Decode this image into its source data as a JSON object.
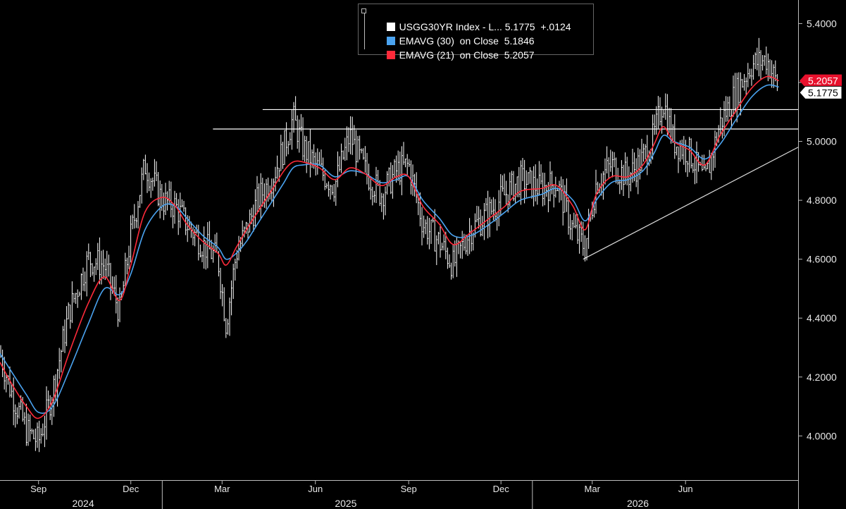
{
  "chart_data": {
    "type": "line",
    "title": "",
    "ylim": [
      3.85,
      5.48
    ],
    "y_ticks": [
      "4.0000",
      "4.2000",
      "4.4000",
      "4.6000",
      "4.8000",
      "5.0000",
      "5.2000",
      "5.4000"
    ],
    "y_tick_values": [
      4.0,
      4.2,
      4.4,
      4.6,
      4.8,
      5.0,
      5.2,
      5.4
    ],
    "x_month_ticks": [
      {
        "label": "Sep",
        "date": "2024-09-01"
      },
      {
        "label": "Dec",
        "date": "2024-12-01"
      },
      {
        "label": "Mar",
        "date": "2025-03-01"
      },
      {
        "label": "Jun",
        "date": "2025-06-01"
      },
      {
        "label": "Sep",
        "date": "2025-09-01"
      },
      {
        "label": "Dec",
        "date": "2025-12-01"
      },
      {
        "label": "Mar",
        "date": "2026-03-01"
      },
      {
        "label": "Jun",
        "date": "2026-06-01"
      }
    ],
    "x_years": [
      {
        "label": "2024",
        "date": "2024-10-15"
      },
      {
        "label": "2025",
        "date": "2025-07-01"
      },
      {
        "label": "2026",
        "date": "2026-04-15"
      }
    ],
    "x_range": [
      "2024-07-25",
      "2026-09-20"
    ],
    "legend": [
      {
        "label": "USGG30YR Index - L...",
        "value": "5.1775",
        "change": "+.0124",
        "color": "#ffffff"
      },
      {
        "label": "EMAVG (30)  on Close",
        "value": "5.1846",
        "change": "",
        "color": "#4aa3f0"
      },
      {
        "label": "EMAVG (21)  on Close",
        "value": "5.2057",
        "change": "",
        "color": "#ff2a3a"
      }
    ],
    "last_price_label": "5.1775",
    "ema21_flag_label": "5.2057",
    "series": [
      {
        "name": "USGG30YR Index - L...",
        "style": "ohlc",
        "color": "#ffffff",
        "x": [
          "2024-07-25",
          "2024-08-05",
          "2024-08-20",
          "2024-09-01",
          "2024-09-15",
          "2024-10-01",
          "2024-10-20",
          "2024-11-05",
          "2024-11-20",
          "2024-12-01",
          "2024-12-15",
          "2025-01-01",
          "2025-01-14",
          "2025-01-25",
          "2025-02-10",
          "2025-02-25",
          "2025-03-05",
          "2025-03-15",
          "2025-03-25",
          "2025-04-05",
          "2025-04-20",
          "2025-05-01",
          "2025-05-10",
          "2025-05-20",
          "2025-06-05",
          "2025-06-20",
          "2025-07-05",
          "2025-07-20",
          "2025-08-05",
          "2025-08-20",
          "2025-09-01",
          "2025-09-15",
          "2025-10-01",
          "2025-10-15",
          "2025-11-01",
          "2025-11-20",
          "2025-12-05",
          "2025-12-20",
          "2026-01-10",
          "2026-01-25",
          "2026-02-10",
          "2026-02-22",
          "2026-03-05",
          "2026-03-20",
          "2026-04-05",
          "2026-04-20",
          "2026-05-01",
          "2026-05-10",
          "2026-05-20",
          "2026-06-05",
          "2026-06-20",
          "2026-07-05",
          "2026-07-20",
          "2026-08-05",
          "2026-08-20",
          "2026-09-01"
        ],
        "values": [
          4.28,
          4.15,
          4.02,
          3.98,
          4.15,
          4.42,
          4.6,
          4.58,
          4.42,
          4.68,
          4.92,
          4.8,
          4.78,
          4.72,
          4.65,
          4.6,
          4.38,
          4.62,
          4.7,
          4.8,
          4.88,
          4.98,
          5.08,
          4.98,
          4.9,
          4.85,
          5.02,
          4.9,
          4.82,
          4.9,
          4.92,
          4.72,
          4.66,
          4.58,
          4.7,
          4.76,
          4.82,
          4.87,
          4.84,
          4.86,
          4.7,
          4.64,
          4.86,
          4.92,
          4.88,
          4.94,
          5.02,
          5.14,
          5.0,
          4.96,
          4.86,
          5.06,
          5.16,
          5.26,
          5.28,
          5.18
        ]
      },
      {
        "name": "EMAVG (30)  on Close",
        "style": "line",
        "color": "#4aa3f0",
        "x": [
          "2024-07-25",
          "2024-08-05",
          "2024-08-20",
          "2024-09-01",
          "2024-09-15",
          "2024-10-01",
          "2024-10-20",
          "2024-11-05",
          "2024-11-20",
          "2024-12-01",
          "2024-12-15",
          "2025-01-01",
          "2025-01-14",
          "2025-01-25",
          "2025-02-10",
          "2025-02-25",
          "2025-03-05",
          "2025-03-15",
          "2025-03-25",
          "2025-04-05",
          "2025-04-20",
          "2025-05-01",
          "2025-05-10",
          "2025-05-20",
          "2025-06-05",
          "2025-06-20",
          "2025-07-05",
          "2025-07-20",
          "2025-08-05",
          "2025-08-20",
          "2025-09-01",
          "2025-09-15",
          "2025-10-01",
          "2025-10-15",
          "2025-11-01",
          "2025-11-20",
          "2025-12-05",
          "2025-12-20",
          "2026-01-10",
          "2026-01-25",
          "2026-02-10",
          "2026-02-22",
          "2026-03-05",
          "2026-03-20",
          "2026-04-05",
          "2026-04-20",
          "2026-05-01",
          "2026-05-10",
          "2026-05-20",
          "2026-06-05",
          "2026-06-20",
          "2026-07-05",
          "2026-07-20",
          "2026-08-05",
          "2026-08-20",
          "2026-09-01"
        ],
        "values": [
          4.28,
          4.22,
          4.14,
          4.08,
          4.1,
          4.22,
          4.38,
          4.5,
          4.48,
          4.55,
          4.7,
          4.78,
          4.78,
          4.74,
          4.68,
          4.64,
          4.6,
          4.62,
          4.66,
          4.72,
          4.8,
          4.86,
          4.91,
          4.92,
          4.92,
          4.88,
          4.9,
          4.89,
          4.86,
          4.87,
          4.88,
          4.8,
          4.74,
          4.68,
          4.68,
          4.72,
          4.76,
          4.8,
          4.82,
          4.84,
          4.8,
          4.73,
          4.8,
          4.86,
          4.87,
          4.9,
          4.96,
          5.02,
          5.0,
          4.98,
          4.94,
          4.99,
          5.07,
          5.15,
          5.19,
          5.1846
        ]
      },
      {
        "name": "EMAVG (21)  on Close",
        "style": "line",
        "color": "#ff2a3a",
        "x": [
          "2024-07-25",
          "2024-08-05",
          "2024-08-20",
          "2024-09-01",
          "2024-09-15",
          "2024-10-01",
          "2024-10-20",
          "2024-11-05",
          "2024-11-20",
          "2024-12-01",
          "2024-12-15",
          "2025-01-01",
          "2025-01-14",
          "2025-01-25",
          "2025-02-10",
          "2025-02-25",
          "2025-03-05",
          "2025-03-15",
          "2025-03-25",
          "2025-04-05",
          "2025-04-20",
          "2025-05-01",
          "2025-05-10",
          "2025-05-20",
          "2025-06-05",
          "2025-06-20",
          "2025-07-05",
          "2025-07-20",
          "2025-08-05",
          "2025-08-20",
          "2025-09-01",
          "2025-09-15",
          "2025-10-01",
          "2025-10-15",
          "2025-11-01",
          "2025-11-20",
          "2025-12-05",
          "2025-12-20",
          "2026-01-10",
          "2026-01-25",
          "2026-02-10",
          "2026-02-22",
          "2026-03-05",
          "2026-03-20",
          "2026-04-05",
          "2026-04-20",
          "2026-05-01",
          "2026-05-10",
          "2026-05-20",
          "2026-06-05",
          "2026-06-20",
          "2026-07-05",
          "2026-07-20",
          "2026-08-05",
          "2026-08-20",
          "2026-09-01"
        ],
        "values": [
          4.25,
          4.18,
          4.1,
          4.06,
          4.12,
          4.28,
          4.45,
          4.54,
          4.46,
          4.58,
          4.76,
          4.81,
          4.78,
          4.72,
          4.66,
          4.62,
          4.58,
          4.64,
          4.7,
          4.76,
          4.84,
          4.9,
          4.93,
          4.93,
          4.91,
          4.87,
          4.91,
          4.89,
          4.85,
          4.88,
          4.88,
          4.78,
          4.72,
          4.65,
          4.69,
          4.74,
          4.78,
          4.83,
          4.84,
          4.85,
          4.78,
          4.7,
          4.82,
          4.88,
          4.88,
          4.92,
          4.99,
          5.05,
          5.0,
          4.97,
          4.92,
          5.02,
          5.1,
          5.18,
          5.22,
          5.2057
        ]
      }
    ],
    "annotations": [
      {
        "type": "hline",
        "y": 5.042,
        "x_from": "2025-02-20",
        "x_to": "2026-09-20",
        "color": "#ffffff"
      },
      {
        "type": "hline",
        "y": 5.108,
        "x_from": "2025-04-10",
        "x_to": "2026-09-20",
        "color": "#ffffff"
      },
      {
        "type": "trendline",
        "from": {
          "x": "2026-02-20",
          "y": 4.6
        },
        "to": {
          "x": "2026-09-20",
          "y": 4.98
        },
        "color": "#dddddd"
      }
    ],
    "grid": false,
    "legend_position": "top"
  }
}
